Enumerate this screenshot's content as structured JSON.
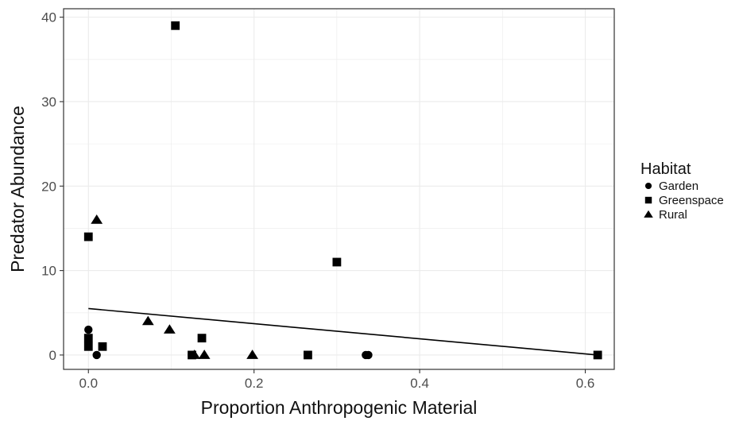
{
  "chart_data": {
    "type": "scatter",
    "xlabel": "Proportion Anthropogenic Material",
    "ylabel": "Predator Abundance",
    "xlim": [
      -0.03,
      0.635
    ],
    "ylim": [
      -1.7,
      41
    ],
    "x_ticks": [
      0.0,
      0.2,
      0.4,
      0.6
    ],
    "x_tick_labels": [
      "0.0",
      "0.2",
      "0.4",
      "0.6"
    ],
    "y_ticks": [
      0,
      10,
      20,
      30,
      40
    ],
    "y_tick_labels": [
      "0",
      "10",
      "20",
      "30",
      "40"
    ],
    "grid": true,
    "legend": {
      "title": "Habitat",
      "position": "right",
      "entries": [
        {
          "label": "Garden",
          "shape": "circle"
        },
        {
          "label": "Greenspace",
          "shape": "square"
        },
        {
          "label": "Rural",
          "shape": "triangle"
        }
      ]
    },
    "series": [
      {
        "name": "Garden",
        "shape": "circle",
        "points": [
          {
            "x": 0.0,
            "y": 3
          },
          {
            "x": 0.0,
            "y": 2
          },
          {
            "x": 0.01,
            "y": 0
          },
          {
            "x": 0.335,
            "y": 0
          },
          {
            "x": 0.338,
            "y": 0
          }
        ]
      },
      {
        "name": "Greenspace",
        "shape": "square",
        "points": [
          {
            "x": 0.0,
            "y": 14
          },
          {
            "x": 0.0,
            "y": 2
          },
          {
            "x": 0.0,
            "y": 1
          },
          {
            "x": 0.017,
            "y": 1
          },
          {
            "x": 0.105,
            "y": 39
          },
          {
            "x": 0.125,
            "y": 0
          },
          {
            "x": 0.137,
            "y": 2
          },
          {
            "x": 0.265,
            "y": 0
          },
          {
            "x": 0.3,
            "y": 11
          },
          {
            "x": 0.615,
            "y": 0
          }
        ]
      },
      {
        "name": "Rural",
        "shape": "triangle",
        "points": [
          {
            "x": 0.01,
            "y": 16
          },
          {
            "x": 0.072,
            "y": 4
          },
          {
            "x": 0.098,
            "y": 3
          },
          {
            "x": 0.128,
            "y": 0
          },
          {
            "x": 0.14,
            "y": 0
          },
          {
            "x": 0.198,
            "y": 0
          }
        ]
      }
    ],
    "trend_line": {
      "x": [
        0.0,
        0.615
      ],
      "y": [
        5.5,
        0.0
      ]
    },
    "colors": {
      "marker": "#000000",
      "grid": "#ebebeb",
      "panel_border": "#333333"
    }
  }
}
